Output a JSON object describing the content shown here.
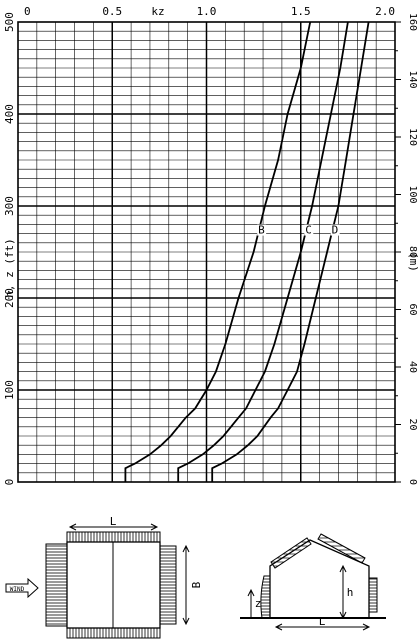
{
  "chart_data": {
    "type": "line",
    "title": "",
    "top_axis_label": "kz",
    "left_axis_label": "h, z (ft)",
    "right_axis_label": "(m)",
    "xlim": [
      0,
      2.0
    ],
    "ylim_ft": [
      0,
      500
    ],
    "ylim_m": [
      0,
      160
    ],
    "x_ticks": [
      "0",
      "0.5",
      "1.0",
      "1.5",
      "2.0"
    ],
    "y_ticks_ft": [
      "0",
      "100",
      "200",
      "300",
      "400",
      "500"
    ],
    "y_ticks_m": [
      "0",
      "20",
      "40",
      "60",
      "80",
      "100",
      "120",
      "140",
      "160"
    ],
    "grid": true,
    "series": [
      {
        "name": "B",
        "points": [
          [
            0.57,
            0
          ],
          [
            0.57,
            15
          ],
          [
            0.62,
            20
          ],
          [
            0.7,
            30
          ],
          [
            0.76,
            40
          ],
          [
            0.81,
            50
          ],
          [
            0.89,
            70
          ],
          [
            0.94,
            80
          ],
          [
            1.0,
            100
          ],
          [
            1.05,
            120
          ],
          [
            1.1,
            150
          ],
          [
            1.17,
            200
          ],
          [
            1.25,
            250
          ],
          [
            1.31,
            300
          ],
          [
            1.38,
            350
          ],
          [
            1.43,
            400
          ],
          [
            1.5,
            450
          ],
          [
            1.55,
            500
          ]
        ]
      },
      {
        "name": "C",
        "points": [
          [
            0.85,
            0
          ],
          [
            0.85,
            15
          ],
          [
            0.9,
            20
          ],
          [
            0.98,
            30
          ],
          [
            1.04,
            40
          ],
          [
            1.09,
            50
          ],
          [
            1.17,
            70
          ],
          [
            1.21,
            80
          ],
          [
            1.26,
            100
          ],
          [
            1.31,
            120
          ],
          [
            1.36,
            150
          ],
          [
            1.43,
            200
          ],
          [
            1.5,
            250
          ],
          [
            1.56,
            300
          ],
          [
            1.61,
            350
          ],
          [
            1.66,
            400
          ],
          [
            1.71,
            450
          ],
          [
            1.75,
            500
          ]
        ]
      },
      {
        "name": "D",
        "points": [
          [
            1.03,
            0
          ],
          [
            1.03,
            15
          ],
          [
            1.08,
            20
          ],
          [
            1.16,
            30
          ],
          [
            1.22,
            40
          ],
          [
            1.27,
            50
          ],
          [
            1.34,
            70
          ],
          [
            1.38,
            80
          ],
          [
            1.43,
            100
          ],
          [
            1.48,
            120
          ],
          [
            1.52,
            150
          ],
          [
            1.58,
            200
          ],
          [
            1.64,
            250
          ],
          [
            1.7,
            300
          ],
          [
            1.74,
            350
          ],
          [
            1.78,
            400
          ],
          [
            1.82,
            450
          ],
          [
            1.86,
            500
          ]
        ]
      }
    ]
  },
  "diagram": {
    "plan_width_label": "L",
    "plan_depth_label": "B",
    "wind_label": "WIND",
    "section_z_label": "z",
    "section_h_label": "h",
    "section_length_label": "L"
  }
}
